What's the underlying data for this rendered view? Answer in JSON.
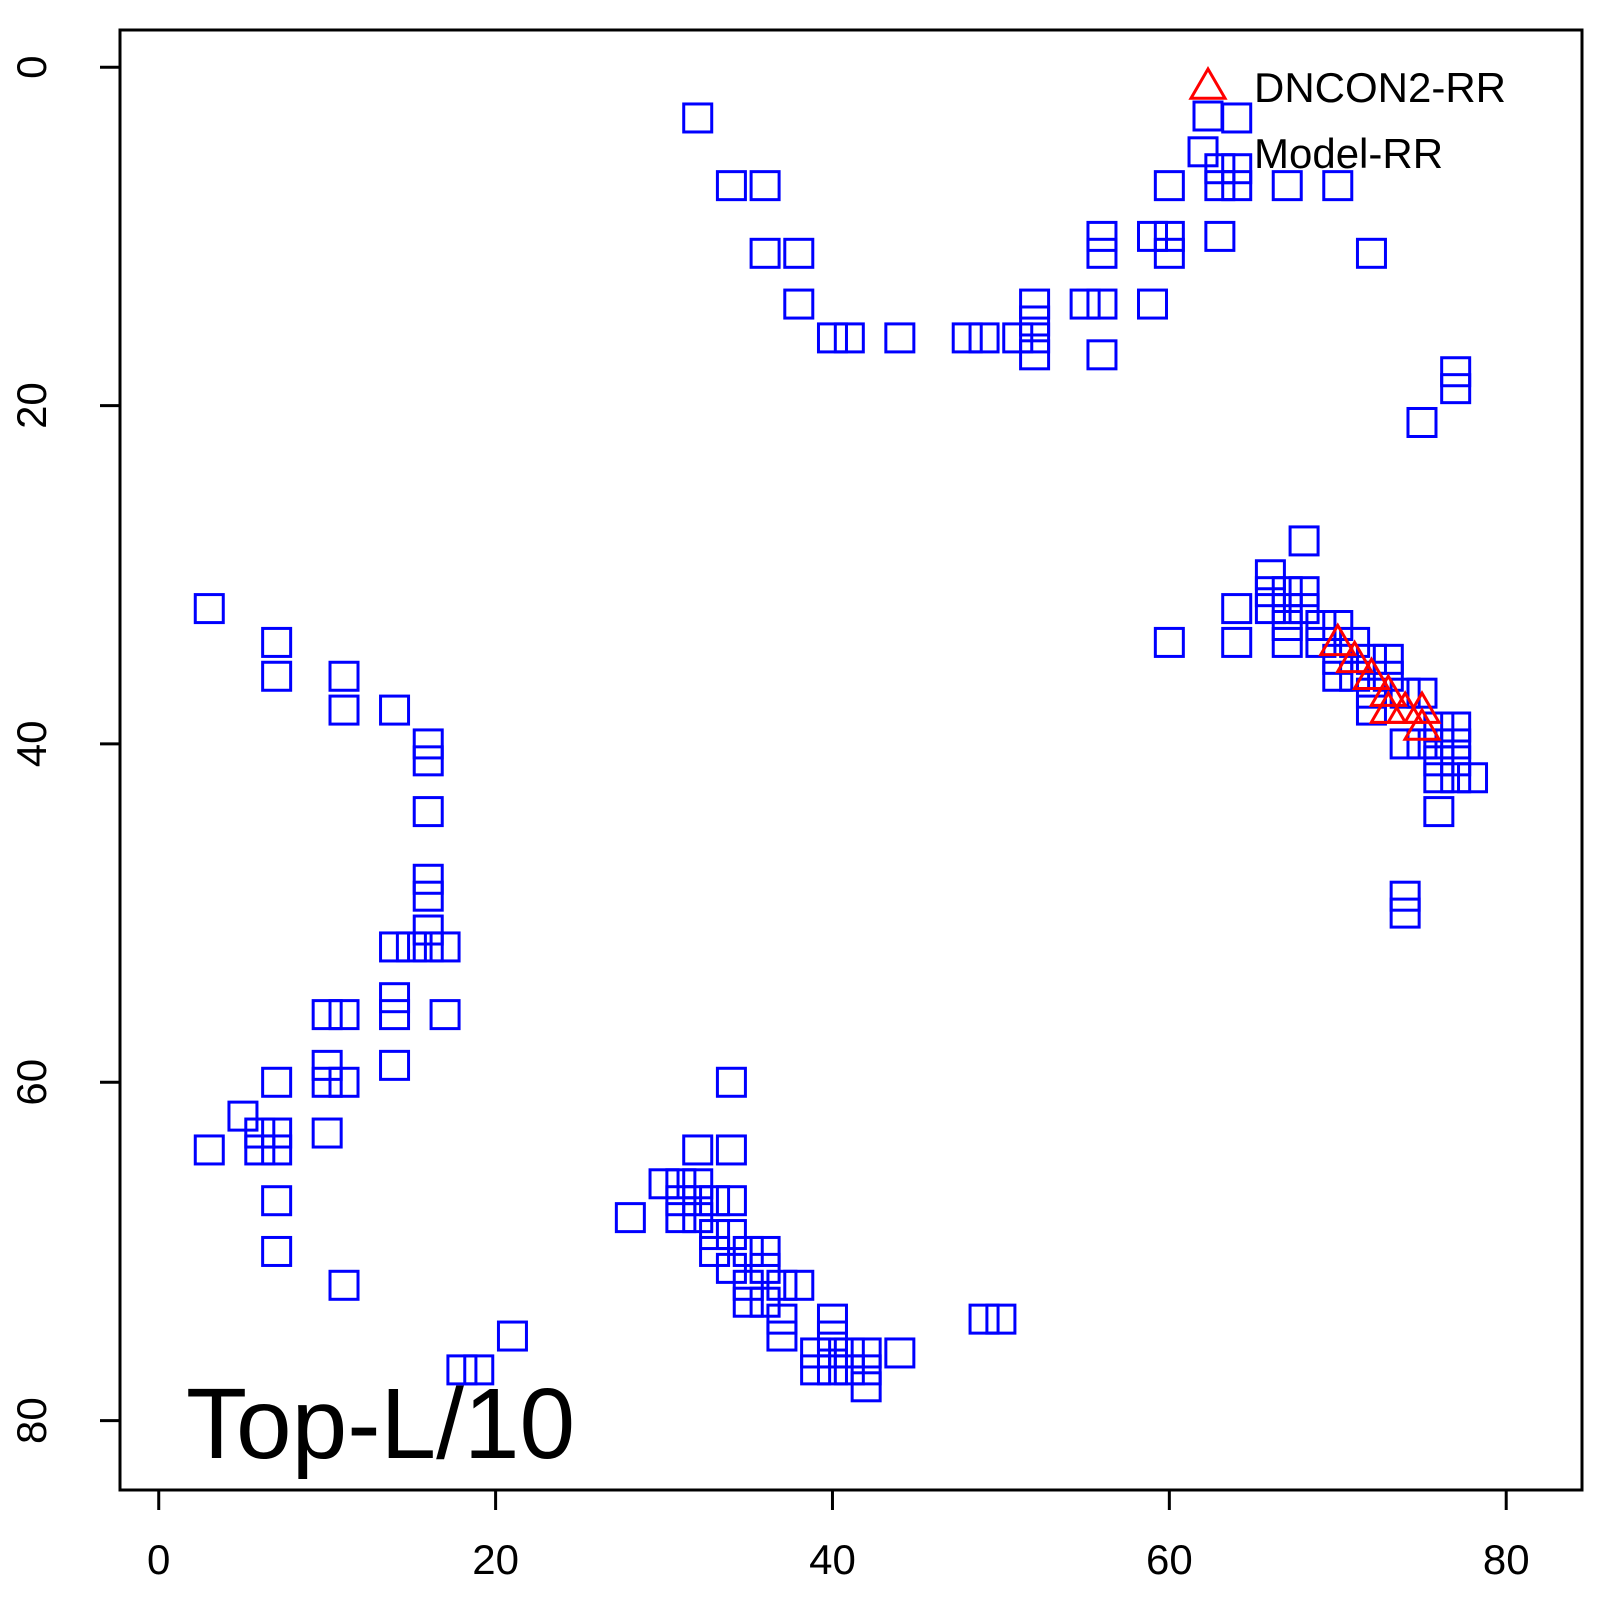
{
  "chart_data": {
    "type": "scatter",
    "panel_label": "Top-L/10",
    "xlim": [
      -2.3,
      84.5
    ],
    "ylim": [
      84.1,
      -2.2
    ],
    "x_ticks": [
      0,
      20,
      40,
      60,
      80
    ],
    "y_ticks": [
      0,
      20,
      40,
      60,
      80
    ],
    "x_tick_labels": [
      "0",
      "20",
      "40",
      "60",
      "80"
    ],
    "y_tick_labels": [
      "0",
      "20",
      "40",
      "60",
      "80"
    ],
    "grid": false,
    "legend_position": "top-right",
    "series": [
      {
        "name": "DNCON2-RR",
        "marker": "triangle",
        "color": "#ff0000",
        "points": [
          [
            70,
            34
          ],
          [
            71,
            35
          ],
          [
            72,
            36
          ],
          [
            73,
            37
          ],
          [
            73,
            38
          ],
          [
            74,
            38
          ],
          [
            75,
            38
          ],
          [
            75,
            39
          ]
        ]
      },
      {
        "name": "Model-RR",
        "marker": "square",
        "color": "#0000ff",
        "points": [
          [
            32,
            3
          ],
          [
            34,
            7
          ],
          [
            36,
            7
          ],
          [
            36,
            11
          ],
          [
            38,
            11
          ],
          [
            38,
            14
          ],
          [
            40,
            16
          ],
          [
            41,
            16
          ],
          [
            44,
            16
          ],
          [
            48,
            16
          ],
          [
            49,
            16
          ],
          [
            51,
            16
          ],
          [
            52,
            14
          ],
          [
            52,
            15
          ],
          [
            52,
            16
          ],
          [
            52,
            17
          ],
          [
            55,
            14
          ],
          [
            56,
            14
          ],
          [
            56,
            17
          ],
          [
            56,
            10
          ],
          [
            56,
            11
          ],
          [
            59,
            10
          ],
          [
            59,
            14
          ],
          [
            60,
            7
          ],
          [
            60,
            10
          ],
          [
            60,
            11
          ],
          [
            62,
            5
          ],
          [
            63,
            6
          ],
          [
            63,
            7
          ],
          [
            64,
            6
          ],
          [
            64,
            7
          ],
          [
            64,
            3
          ],
          [
            63,
            10
          ],
          [
            67,
            7
          ],
          [
            70,
            7
          ],
          [
            72,
            11
          ],
          [
            77,
            18
          ],
          [
            77,
            19
          ],
          [
            75,
            21
          ],
          [
            68,
            28
          ],
          [
            66,
            30
          ],
          [
            66,
            31
          ],
          [
            66,
            32
          ],
          [
            67,
            31
          ],
          [
            67,
            32
          ],
          [
            67,
            33
          ],
          [
            67,
            34
          ],
          [
            68,
            31
          ],
          [
            68,
            32
          ],
          [
            64,
            32
          ],
          [
            64,
            34
          ],
          [
            60,
            34
          ],
          [
            69,
            33
          ],
          [
            69,
            34
          ],
          [
            70,
            33
          ],
          [
            70,
            35
          ],
          [
            70,
            36
          ],
          [
            71,
            34
          ],
          [
            71,
            36
          ],
          [
            72,
            35
          ],
          [
            72,
            37
          ],
          [
            72,
            38
          ],
          [
            73,
            35
          ],
          [
            73,
            36
          ],
          [
            74,
            37
          ],
          [
            74,
            40
          ],
          [
            75,
            37
          ],
          [
            75,
            40
          ],
          [
            76,
            39
          ],
          [
            76,
            40
          ],
          [
            76,
            41
          ],
          [
            76,
            42
          ],
          [
            76,
            44
          ],
          [
            77,
            39
          ],
          [
            77,
            40
          ],
          [
            77,
            41
          ],
          [
            77,
            42
          ],
          [
            78,
            42
          ],
          [
            74,
            49
          ],
          [
            74,
            50
          ],
          [
            3,
            32
          ],
          [
            7,
            34
          ],
          [
            7,
            36
          ],
          [
            11,
            36
          ],
          [
            11,
            38
          ],
          [
            14,
            38
          ],
          [
            16,
            40
          ],
          [
            16,
            41
          ],
          [
            16,
            44
          ],
          [
            16,
            48
          ],
          [
            16,
            49
          ],
          [
            16,
            51
          ],
          [
            14,
            52
          ],
          [
            15,
            52
          ],
          [
            16,
            52
          ],
          [
            17,
            52
          ],
          [
            14,
            55
          ],
          [
            14,
            56
          ],
          [
            17,
            56
          ],
          [
            10,
            56
          ],
          [
            11,
            56
          ],
          [
            10,
            59
          ],
          [
            14,
            59
          ],
          [
            7,
            60
          ],
          [
            10,
            60
          ],
          [
            11,
            60
          ],
          [
            5,
            62
          ],
          [
            6,
            63
          ],
          [
            7,
            63
          ],
          [
            6,
            64
          ],
          [
            7,
            64
          ],
          [
            3,
            64
          ],
          [
            10,
            63
          ],
          [
            7,
            67
          ],
          [
            7,
            70
          ],
          [
            11,
            72
          ],
          [
            28,
            68
          ],
          [
            30,
            66
          ],
          [
            31,
            66
          ],
          [
            32,
            66
          ],
          [
            31,
            67
          ],
          [
            32,
            67
          ],
          [
            33,
            67
          ],
          [
            34,
            67
          ],
          [
            31,
            68
          ],
          [
            32,
            68
          ],
          [
            32,
            64
          ],
          [
            34,
            64
          ],
          [
            34,
            60
          ],
          [
            33,
            69
          ],
          [
            34,
            69
          ],
          [
            33,
            70
          ],
          [
            35,
            70
          ],
          [
            36,
            70
          ],
          [
            34,
            71
          ],
          [
            36,
            71
          ],
          [
            35,
            72
          ],
          [
            37,
            72
          ],
          [
            38,
            72
          ],
          [
            35,
            73
          ],
          [
            36,
            73
          ],
          [
            37,
            74
          ],
          [
            40,
            74
          ],
          [
            37,
            75
          ],
          [
            40,
            75
          ],
          [
            39,
            76
          ],
          [
            40,
            76
          ],
          [
            41,
            76
          ],
          [
            42,
            76
          ],
          [
            44,
            76
          ],
          [
            39,
            77
          ],
          [
            40,
            77
          ],
          [
            41,
            77
          ],
          [
            42,
            77
          ],
          [
            42,
            78
          ],
          [
            49,
            74
          ],
          [
            50,
            74
          ],
          [
            21,
            75
          ],
          [
            18,
            77
          ],
          [
            19,
            77
          ]
        ]
      }
    ]
  }
}
